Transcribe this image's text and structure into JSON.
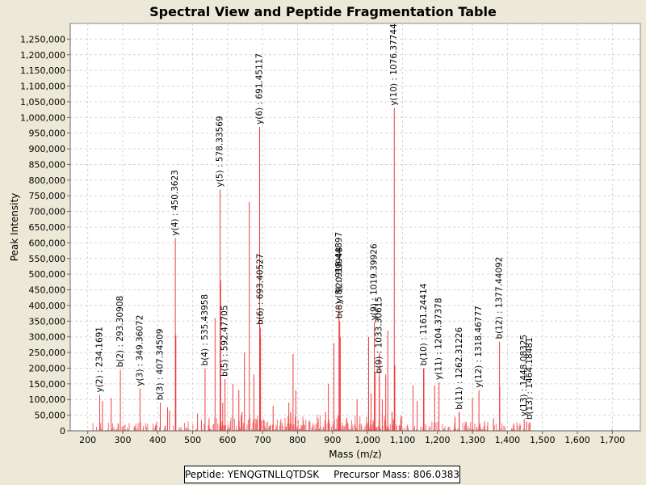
{
  "chart_data": {
    "type": "bar",
    "title": "Spectral View and Peptide Fragmentation Table",
    "xlabel": "Mass (m/z)",
    "ylabel": "Peak Intensity",
    "xlim": [
      150,
      1780
    ],
    "ylim": [
      0,
      1300000
    ],
    "xticks": [
      200,
      300,
      400,
      500,
      600,
      700,
      800,
      900,
      1000,
      1100,
      1200,
      1300,
      1400,
      1500,
      1600,
      1700
    ],
    "xtick_labels": [
      "200",
      "300",
      "400",
      "500",
      "600",
      "700",
      "800",
      "900",
      "1,000",
      "1,100",
      "1,200",
      "1,300",
      "1,400",
      "1,500",
      "1,600",
      "1,700"
    ],
    "yticks": [
      0,
      50000,
      100000,
      150000,
      200000,
      250000,
      300000,
      350000,
      400000,
      450000,
      500000,
      550000,
      600000,
      650000,
      700000,
      750000,
      800000,
      850000,
      900000,
      950000,
      1000000,
      1050000,
      1100000,
      1150000,
      1200000,
      1250000
    ],
    "ytick_labels": [
      "0",
      "50,000",
      "100,000",
      "150,000",
      "200,000",
      "250,000",
      "300,000",
      "350,000",
      "400,000",
      "450,000",
      "500,000",
      "550,000",
      "600,000",
      "650,000",
      "700,000",
      "750,000",
      "800,000",
      "850,000",
      "900,000",
      "950,000",
      "1,000,000",
      "1,050,000",
      "1,100,000",
      "1,150,000",
      "1,200,000",
      "1,250,000"
    ],
    "annotated_peaks": [
      {
        "label": "y(2) : 234.1691",
        "mz": 234.17,
        "intensity": 115000
      },
      {
        "label": "b(2) : 293.30908",
        "mz": 293.31,
        "intensity": 195000
      },
      {
        "label": "y(3) : 349.36072",
        "mz": 349.36,
        "intensity": 135000
      },
      {
        "label": "b(3) : 407.34509",
        "mz": 407.35,
        "intensity": 90000
      },
      {
        "label": "y(4) : 450.3623",
        "mz": 450.36,
        "intensity": 615000
      },
      {
        "label": "b(4) : 535.43958",
        "mz": 535.44,
        "intensity": 200000
      },
      {
        "label": "y(5) : 578.33569",
        "mz": 578.34,
        "intensity": 770000
      },
      {
        "label": "b(5) : 592.47705",
        "mz": 592.48,
        "intensity": 165000
      },
      {
        "label": "y(6) : 691.45117",
        "mz": 691.45,
        "intensity": 970000
      },
      {
        "label": "b(6) : 693.40527",
        "mz": 693.41,
        "intensity": 330000
      },
      {
        "label": "b(8) : 920.39948",
        "mz": 920.4,
        "intensity": 350000
      },
      {
        "label": "y(8) : 918.44897",
        "mz": 918.45,
        "intensity": 400000
      },
      {
        "label": "y(9) : 1019.39926",
        "mz": 1019.4,
        "intensity": 345000
      },
      {
        "label": "b(9) : 1033.30615",
        "mz": 1033.31,
        "intensity": 175000
      },
      {
        "label": "y(10) : 1076.37744",
        "mz": 1076.38,
        "intensity": 1030000
      },
      {
        "label": "b(10) : 1161.24414",
        "mz": 1161.24,
        "intensity": 200000
      },
      {
        "label": "y(11) : 1204.37378",
        "mz": 1204.37,
        "intensity": 155000
      },
      {
        "label": "b(11) : 1262.31226",
        "mz": 1262.31,
        "intensity": 60000
      },
      {
        "label": "y(12) : 1318.46777",
        "mz": 1318.47,
        "intensity": 130000
      },
      {
        "label": "b(12) : 1377.44092",
        "mz": 1377.44,
        "intensity": 285000
      },
      {
        "label": "y(13) : 1448.08325",
        "mz": 1448.08,
        "intensity": 38000
      },
      {
        "label": "b(13) : 1464.18481",
        "mz": 1464.18,
        "intensity": 28000
      }
    ],
    "other_peaks": [
      {
        "mz": 242,
        "intensity": 95000
      },
      {
        "mz": 267,
        "intensity": 105000
      },
      {
        "mz": 395,
        "intensity": 20000
      },
      {
        "mz": 428,
        "intensity": 75000
      },
      {
        "mz": 434,
        "intensity": 65000
      },
      {
        "mz": 452,
        "intensity": 305000
      },
      {
        "mz": 514,
        "intensity": 55000
      },
      {
        "mz": 525,
        "intensity": 35000
      },
      {
        "mz": 547,
        "intensity": 40000
      },
      {
        "mz": 564,
        "intensity": 360000
      },
      {
        "mz": 580,
        "intensity": 480000
      },
      {
        "mz": 586,
        "intensity": 90000
      },
      {
        "mz": 615,
        "intensity": 150000
      },
      {
        "mz": 632,
        "intensity": 130000
      },
      {
        "mz": 641,
        "intensity": 60000
      },
      {
        "mz": 648,
        "intensity": 250000
      },
      {
        "mz": 662,
        "intensity": 730000
      },
      {
        "mz": 675,
        "intensity": 180000
      },
      {
        "mz": 694,
        "intensity": 300000
      },
      {
        "mz": 730,
        "intensity": 80000
      },
      {
        "mz": 775,
        "intensity": 90000
      },
      {
        "mz": 780,
        "intensity": 60000
      },
      {
        "mz": 787,
        "intensity": 245000
      },
      {
        "mz": 795,
        "intensity": 130000
      },
      {
        "mz": 880,
        "intensity": 60000
      },
      {
        "mz": 888,
        "intensity": 150000
      },
      {
        "mz": 904,
        "intensity": 280000
      },
      {
        "mz": 922,
        "intensity": 300000
      },
      {
        "mz": 970,
        "intensity": 100000
      },
      {
        "mz": 1003,
        "intensity": 300000
      },
      {
        "mz": 1010,
        "intensity": 120000
      },
      {
        "mz": 1022,
        "intensity": 185000
      },
      {
        "mz": 1034,
        "intensity": 250000
      },
      {
        "mz": 1042,
        "intensity": 100000
      },
      {
        "mz": 1052,
        "intensity": 180000
      },
      {
        "mz": 1058,
        "intensity": 320000
      },
      {
        "mz": 1070,
        "intensity": 60000
      },
      {
        "mz": 1078,
        "intensity": 210000
      },
      {
        "mz": 1095,
        "intensity": 40000
      },
      {
        "mz": 1130,
        "intensity": 145000
      },
      {
        "mz": 1142,
        "intensity": 95000
      },
      {
        "mz": 1160,
        "intensity": 200000
      },
      {
        "mz": 1192,
        "intensity": 145000
      },
      {
        "mz": 1250,
        "intensity": 45000
      },
      {
        "mz": 1262,
        "intensity": 60000
      },
      {
        "mz": 1300,
        "intensity": 105000
      },
      {
        "mz": 1335,
        "intensity": 30000
      },
      {
        "mz": 1360,
        "intensity": 40000
      },
      {
        "mz": 1378,
        "intensity": 140000
      },
      {
        "mz": 1455,
        "intensity": 30000
      },
      {
        "mz": 1699,
        "intensity": 5000
      }
    ],
    "colors": {
      "peak": "#f03c3c",
      "noise": "#f27272",
      "plot_bg": "#ffffff",
      "page_bg": "#ece9d8"
    }
  },
  "footer": {
    "peptide": "Peptide: YENQGTNLLQTDSK",
    "precursor": "Precursor Mass: 806.0383"
  }
}
